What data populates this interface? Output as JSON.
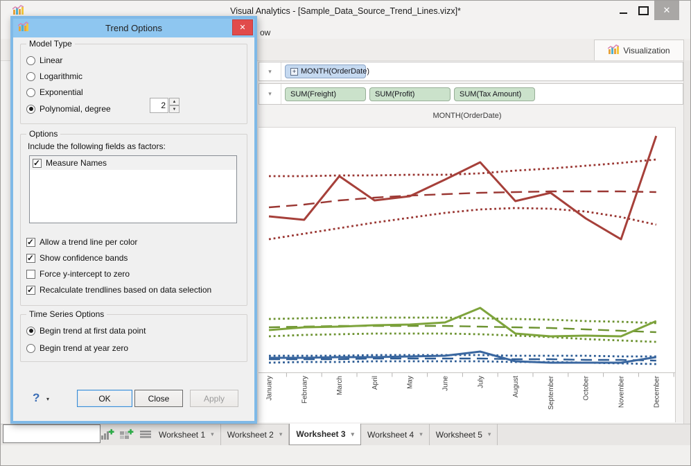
{
  "icons": {
    "caret": "▾",
    "close_x": "✕",
    "expand_plus": "+",
    "spin_up": "▲",
    "spin_down": "▼"
  },
  "window": {
    "title": "Visual Analytics - [Sample_Data_Source_Trend_Lines.vizx]*"
  },
  "menu_fragment": "ow",
  "toolbar": {
    "visualization_tab": "Visualization"
  },
  "shelves": {
    "row1_pills": [
      {
        "label": "MONTH(OrderDate)"
      }
    ],
    "row2_pills": [
      {
        "label": "SUM(Freight)"
      },
      {
        "label": "SUM(Profit)"
      },
      {
        "label": "SUM(Tax Amount)"
      }
    ]
  },
  "dialog": {
    "title": "Trend Options",
    "model_type": {
      "legend": "Model Type",
      "radios": [
        {
          "label": "Linear",
          "selected": false
        },
        {
          "label": "Logarithmic",
          "selected": false
        },
        {
          "label": "Exponential",
          "selected": false
        },
        {
          "label": "Polynomial, degree",
          "selected": true
        }
      ],
      "degree_value": "2"
    },
    "options": {
      "legend": "Options",
      "factors_label": "Include the following fields as factors:",
      "factors": [
        {
          "label": "Measure Names",
          "checked": true
        }
      ],
      "checkboxes": [
        {
          "label": "Allow a trend line per color",
          "checked": true
        },
        {
          "label": "Show confidence bands",
          "checked": true
        },
        {
          "label": "Force y-intercept to zero",
          "checked": false
        },
        {
          "label": "Recalculate trendlines based on data selection",
          "checked": true
        }
      ]
    },
    "time_series": {
      "legend": "Time Series Options",
      "radios": [
        {
          "label": "Begin trend at first data point",
          "selected": true
        },
        {
          "label": "Begin trend at year zero",
          "selected": false
        }
      ]
    },
    "footer": {
      "help_label": "?",
      "ok": "OK",
      "close": "Close",
      "apply": "Apply",
      "apply_disabled": true
    }
  },
  "worksheet_tabs": [
    {
      "label": "Worksheet 1",
      "active": false
    },
    {
      "label": "Worksheet 2",
      "active": false
    },
    {
      "label": "Worksheet 3",
      "active": true
    },
    {
      "label": "Worksheet 4",
      "active": false
    },
    {
      "label": "Worksheet 5",
      "active": false
    }
  ],
  "chart_data": {
    "type": "line",
    "title": "MONTH(OrderDate)",
    "x_categories": [
      "January",
      "February",
      "March",
      "April",
      "May",
      "June",
      "July",
      "August",
      "September",
      "October",
      "November",
      "December"
    ],
    "y_axis_visible": false,
    "value_units": "estimated plot pixels measured from top of plot area (y-axis scale hidden behind dialog; smaller number = higher value)",
    "annotations": "solid = measure values; dashed = polynomial degree-2 trend line; dotted = confidence bands",
    "legend_position": "none",
    "groups": [
      {
        "name": "red series",
        "color": "#a6403a",
        "band_color": "#9a3733",
        "actual": [
          128,
          133,
          70,
          105,
          99,
          75,
          50,
          106,
          94,
          131,
          161,
          12
        ],
        "trend": [
          115,
          111,
          105,
          101,
          98,
          96,
          94,
          93,
          92,
          92,
          92,
          93
        ],
        "band_upper": [
          70,
          70,
          69,
          69,
          68,
          68,
          66,
          62,
          59,
          55,
          51,
          46
        ],
        "band_lower": [
          161,
          153,
          145,
          137,
          130,
          123,
          118,
          116,
          117,
          121,
          129,
          140
        ]
      },
      {
        "name": "green series",
        "color": "#7ea43c",
        "band_color": "#6d9331",
        "actual": [
          292,
          288,
          287,
          285,
          284,
          281,
          260,
          297,
          301,
          300,
          301,
          279
        ],
        "trend": [
          288,
          287,
          286,
          286,
          286,
          286,
          287,
          288,
          289,
          291,
          293,
          295
        ],
        "band_upper": [
          276,
          275,
          274,
          274,
          274,
          274,
          275,
          276,
          277,
          279,
          280,
          282
        ],
        "band_lower": [
          301,
          299,
          298,
          297,
          297,
          297,
          298,
          300,
          302,
          305,
          307,
          309
        ]
      },
      {
        "name": "blue series",
        "color": "#3a67a0",
        "band_color": "#2d5c95",
        "actual": [
          332,
          332,
          331,
          331,
          330,
          329,
          323,
          337,
          339,
          339,
          339,
          331
        ],
        "trend": [
          334,
          334,
          334,
          333,
          333,
          333,
          333,
          334,
          334,
          335,
          335,
          336
        ],
        "band_upper": [
          329,
          329,
          329,
          328,
          328,
          328,
          328,
          329,
          329,
          329,
          330,
          330
        ],
        "band_lower": [
          339,
          338,
          338,
          337,
          337,
          337,
          337,
          338,
          338,
          339,
          340,
          341
        ]
      }
    ]
  }
}
